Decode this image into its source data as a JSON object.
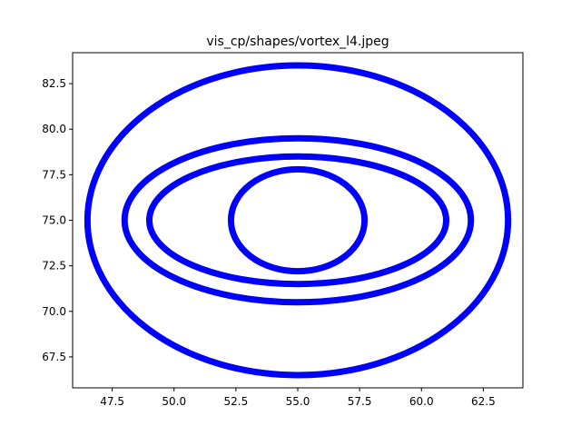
{
  "chart_data": {
    "type": "scatter",
    "title": "vis_cp/shapes/vortex_l4.jpeg",
    "xlabel": "",
    "ylabel": "",
    "xlim": [
      45.9,
      64.1
    ],
    "ylim": [
      65.8,
      84.2
    ],
    "grid": false,
    "legend": "none",
    "marker_color": "#0000ff",
    "x_ticks": [
      47.5,
      50.0,
      52.5,
      55.0,
      57.5,
      60.0,
      62.5
    ],
    "x_tick_labels": [
      "47.5",
      "50.0",
      "52.5",
      "55.0",
      "57.5",
      "60.0",
      "62.5"
    ],
    "y_ticks": [
      67.5,
      70.0,
      72.5,
      75.0,
      77.5,
      80.0,
      82.5
    ],
    "y_tick_labels": [
      "67.5",
      "70.0",
      "72.5",
      "75.0",
      "77.5",
      "80.0",
      "82.5"
    ],
    "rings": [
      {
        "cx": 55.0,
        "cy": 75.0,
        "rx": 8.5,
        "ry": 8.5
      },
      {
        "cx": 55.0,
        "cy": 75.0,
        "rx": 7.0,
        "ry": 4.5
      },
      {
        "cx": 55.0,
        "cy": 75.0,
        "rx": 6.0,
        "ry": 3.5
      },
      {
        "cx": 55.0,
        "cy": 75.0,
        "rx": 2.7,
        "ry": 2.8
      }
    ]
  }
}
